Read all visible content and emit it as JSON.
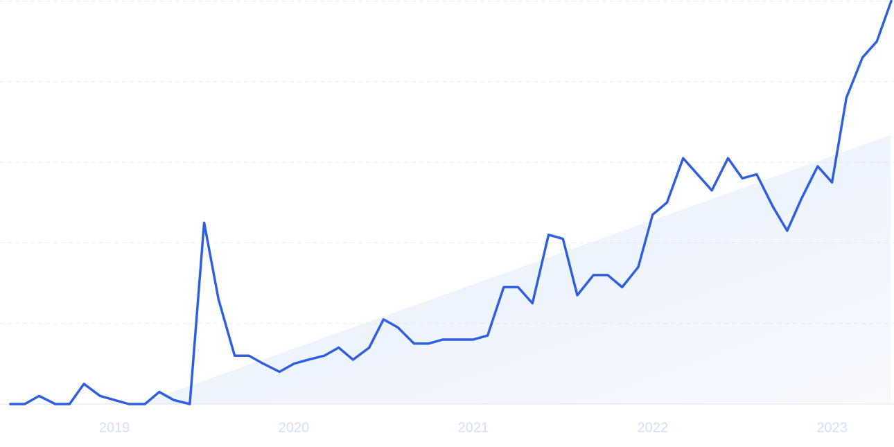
{
  "chart_data": {
    "type": "line",
    "x": [
      2018.42,
      2018.5,
      2018.58,
      2018.67,
      2018.75,
      2018.83,
      2018.92,
      2019,
      2019.08,
      2019.17,
      2019.25,
      2019.33,
      2019.42,
      2019.5,
      2019.58,
      2019.67,
      2019.75,
      2019.83,
      2019.92,
      2020,
      2020.08,
      2020.17,
      2020.25,
      2020.33,
      2020.42,
      2020.5,
      2020.58,
      2020.67,
      2020.75,
      2020.83,
      2020.92,
      2021,
      2021.08,
      2021.17,
      2021.25,
      2021.33,
      2021.42,
      2021.5,
      2021.58,
      2021.67,
      2021.75,
      2021.83,
      2021.92,
      2022,
      2022.08,
      2022.17,
      2022.25,
      2022.33,
      2022.42,
      2022.5,
      2022.58,
      2022.67,
      2022.75,
      2022.83,
      2022.92,
      2023,
      2023.08,
      2023.17,
      2023.25,
      2023.33
    ],
    "values": [
      0,
      0,
      2,
      0,
      0,
      5,
      2,
      1,
      0,
      0,
      3,
      1,
      0,
      45,
      26,
      12,
      12,
      10,
      8,
      10,
      11,
      12,
      14,
      11,
      14,
      21,
      19,
      15,
      15,
      16,
      16,
      16,
      17,
      29,
      29,
      25,
      42,
      41,
      27,
      32,
      32,
      29,
      34,
      47,
      50,
      61,
      57,
      53,
      61,
      56,
      57,
      49,
      43,
      51,
      59,
      55,
      76,
      86,
      90,
      100
    ],
    "color": "#2f5fe0",
    "xlim": [
      2018.42,
      2023.33
    ],
    "xticks": [
      2019,
      2020,
      2021,
      2022,
      2023
    ],
    "ylim": [
      0,
      100
    ],
    "yticks": [
      0,
      20,
      40,
      60,
      80,
      100
    ],
    "ytick_labels": false,
    "grid": true
  }
}
